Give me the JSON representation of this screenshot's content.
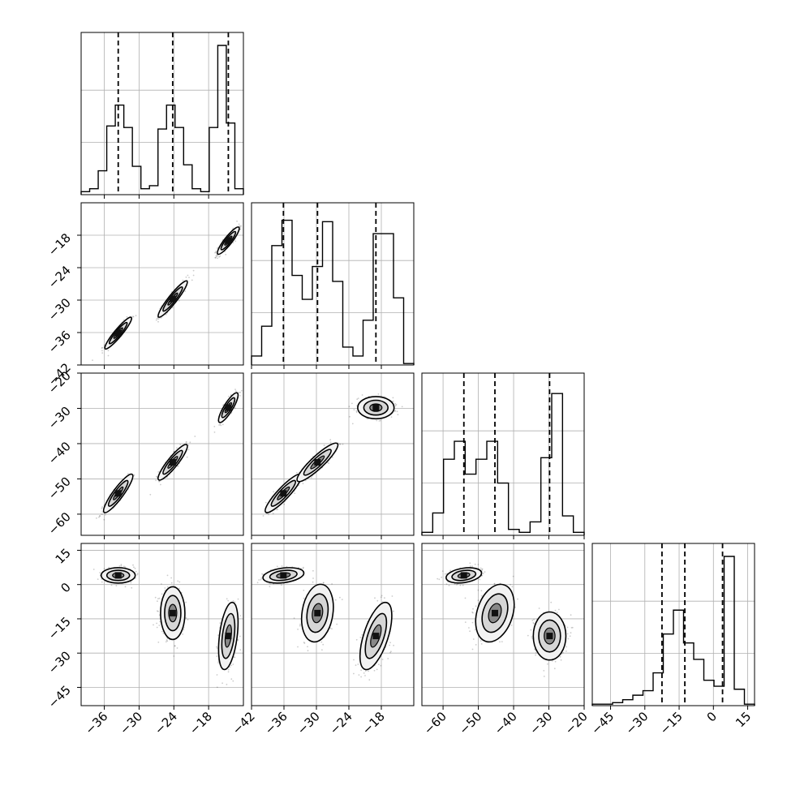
{
  "chart_data": {
    "type": "corner",
    "dims": 4,
    "axes": [
      {
        "range": [
          -40,
          -12
        ],
        "ticks": [
          -36,
          -30,
          -24,
          -18
        ],
        "labels": [
          "−36",
          "−30",
          "−24",
          "−18"
        ],
        "truths": [
          -33.6,
          -24.2,
          -14.6
        ]
      },
      {
        "range": [
          -42,
          -12
        ],
        "ticks": [
          -42,
          -36,
          -30,
          -24,
          -18
        ],
        "labels": [
          "−42",
          "−36",
          "−30",
          "−24",
          "−18"
        ],
        "truths": [
          -36.1,
          -29.8,
          -19.0
        ]
      },
      {
        "range": [
          -66,
          -20
        ],
        "ticks": [
          -60,
          -50,
          -40,
          -30,
          -20
        ],
        "labels": [
          "−60",
          "−50",
          "−40",
          "−30",
          "−20"
        ],
        "truths": [
          -54.1,
          -45.3,
          -29.8
        ]
      },
      {
        "range": [
          -53,
          18
        ],
        "ticks": [
          -45,
          -30,
          -15,
          0,
          15
        ],
        "labels": [
          "−45",
          "−30",
          "−15",
          "0",
          "15"
        ],
        "truths": [
          -22.5,
          -12.5,
          4.0
        ]
      }
    ],
    "histograms": [
      [
        0.02,
        0.04,
        0.16,
        0.46,
        0.6,
        0.45,
        0.19,
        0.04,
        0.06,
        0.44,
        0.6,
        0.45,
        0.2,
        0.04,
        0.02,
        0.45,
        1.0,
        0.48,
        0.04
      ],
      [
        0.06,
        0.26,
        0.8,
        0.97,
        0.6,
        0.44,
        0.66,
        0.96,
        0.56,
        0.12,
        0.06,
        0.3,
        0.88,
        0.88,
        0.45,
        0.01
      ],
      [
        0.02,
        0.15,
        0.51,
        0.63,
        0.41,
        0.51,
        0.63,
        0.35,
        0.04,
        0.02,
        0.09,
        0.52,
        0.95,
        0.13,
        0.02
      ],
      [
        0.01,
        0.01,
        0.02,
        0.04,
        0.07,
        0.1,
        0.22,
        0.48,
        0.64,
        0.42,
        0.31,
        0.17,
        0.13,
        1.0,
        0.11,
        0.01
      ]
    ],
    "clusters": [
      [
        -33.6,
        -36.1,
        -54.1,
        4.0
      ],
      [
        -24.2,
        -29.8,
        -45.3,
        -12.5
      ],
      [
        -14.6,
        -19.0,
        -29.8,
        -22.5
      ]
    ],
    "grid": true
  }
}
